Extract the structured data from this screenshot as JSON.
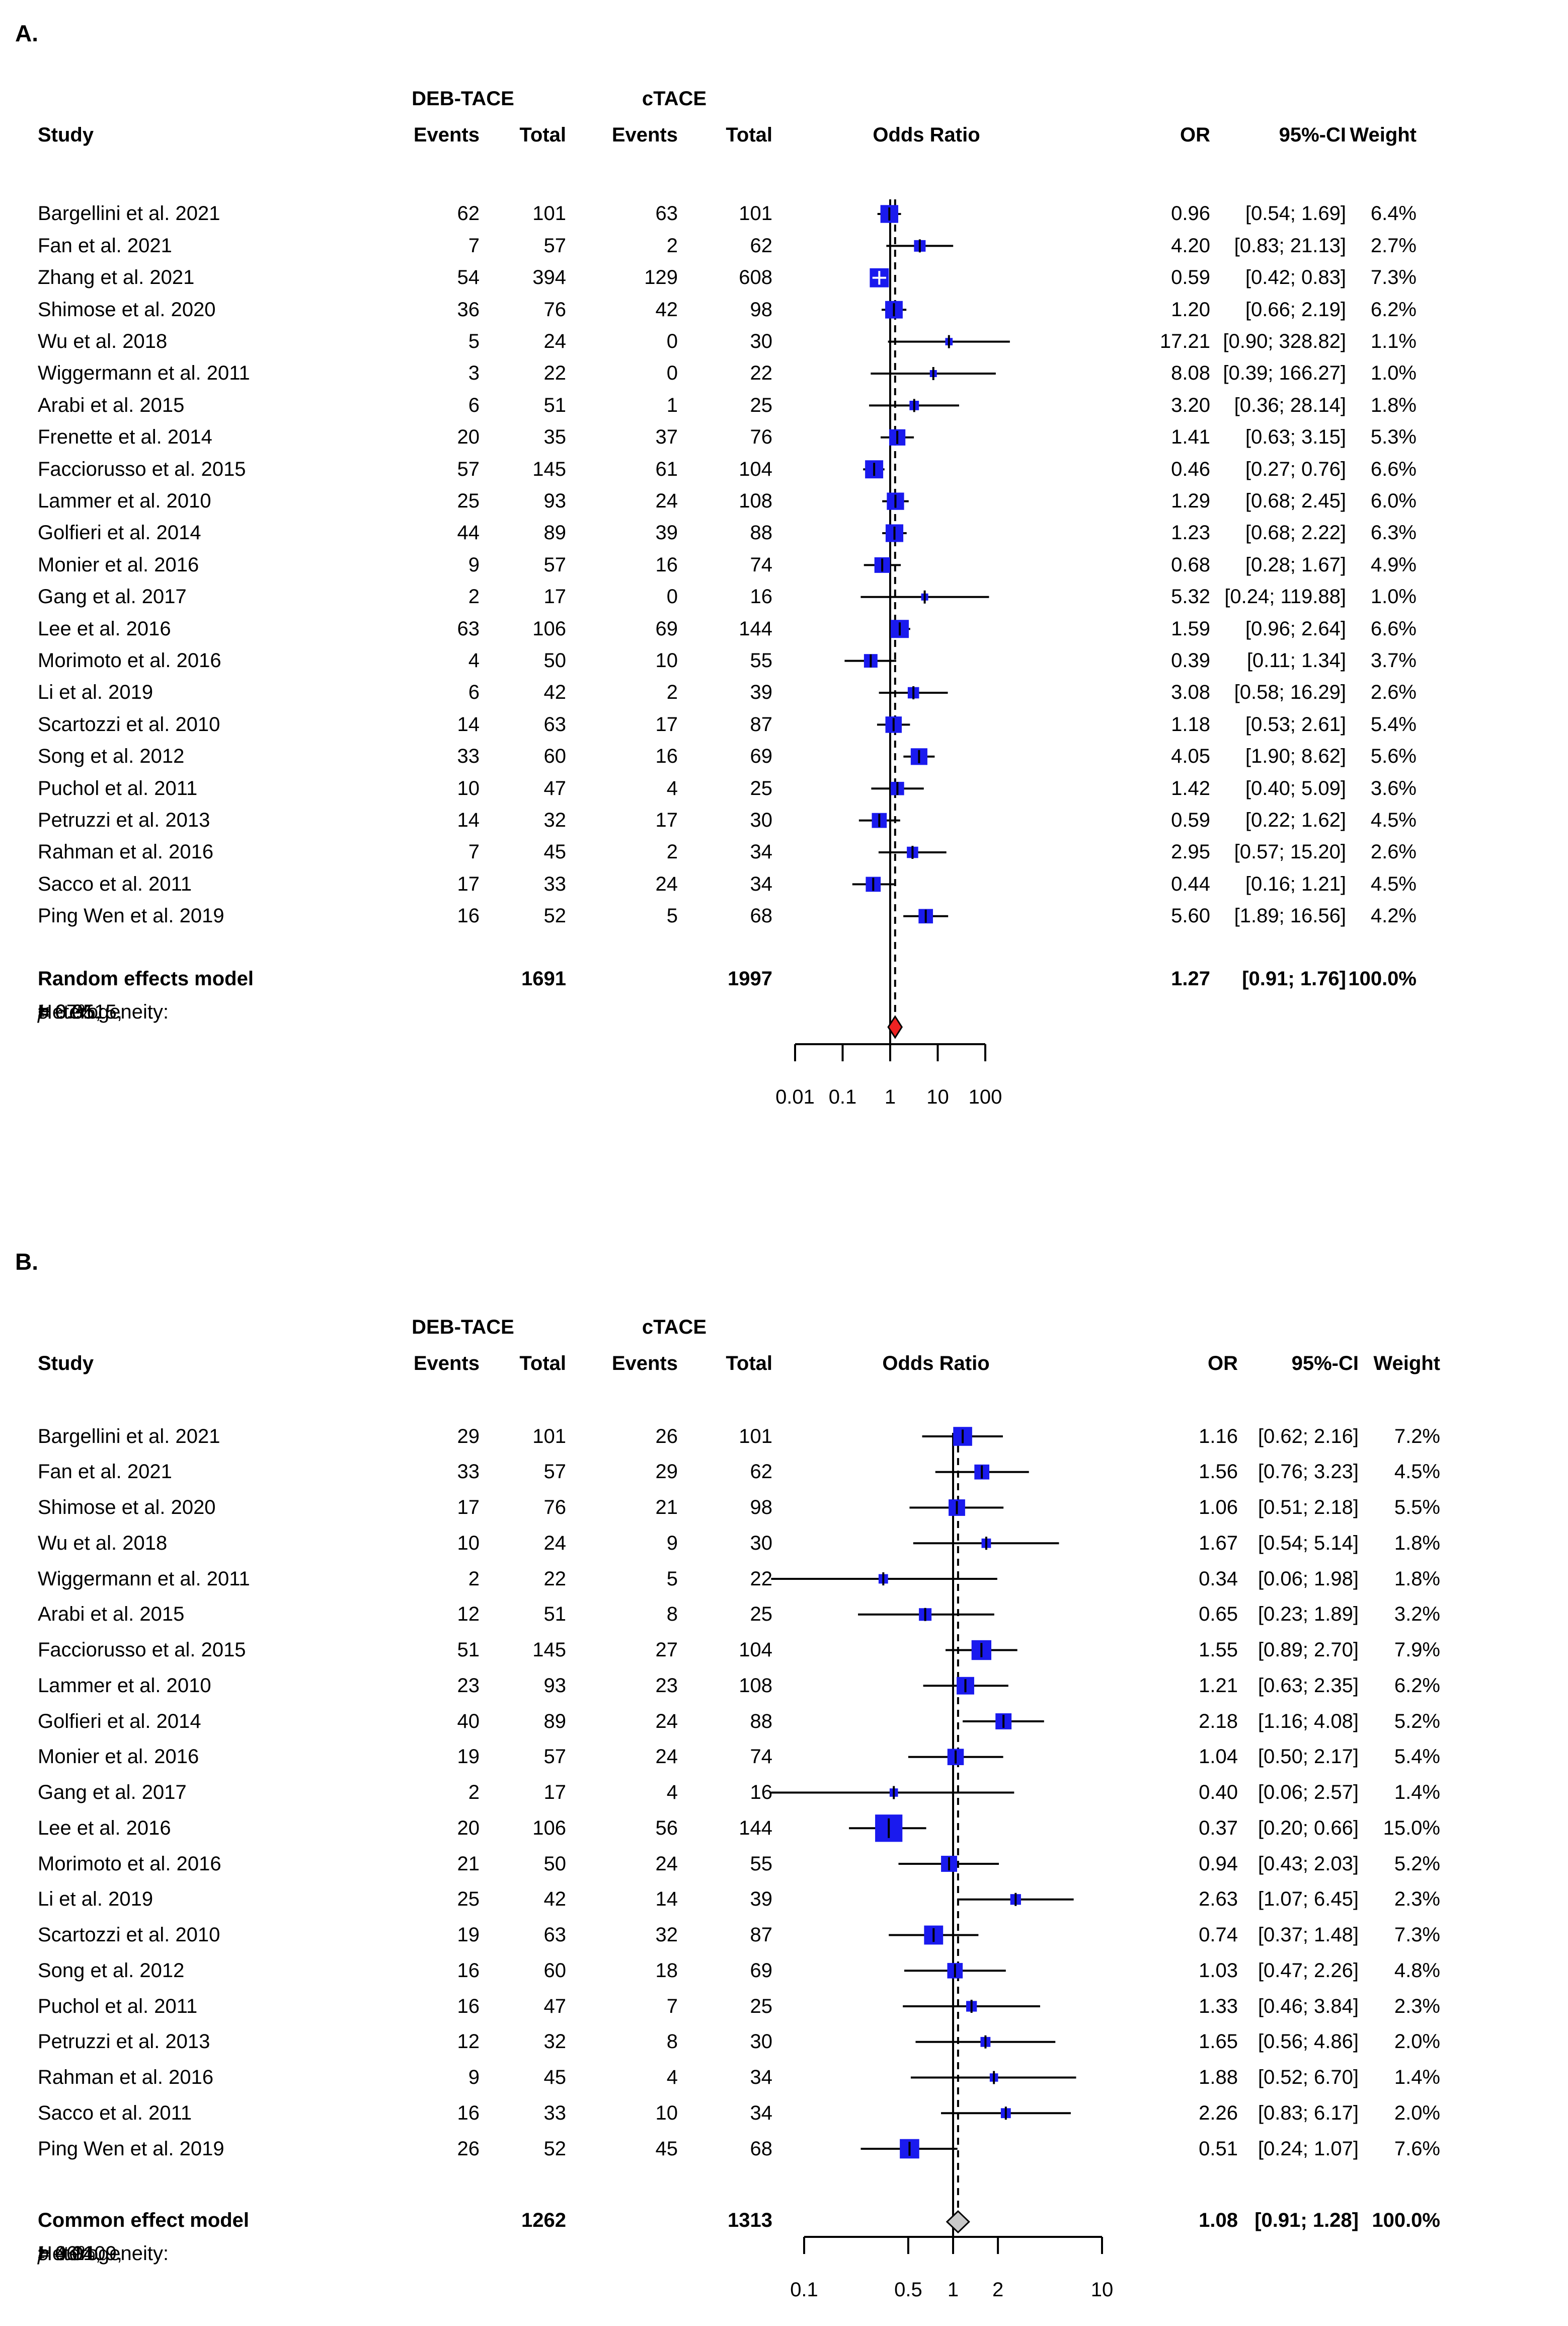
{
  "figure": {
    "background": "#ffffff",
    "text_color": "#000000"
  },
  "chart_data": [
    {
      "type": "forest",
      "panel_label": "A.",
      "scale": "log",
      "xlim": [
        0.01,
        100
      ],
      "legend_position": "none",
      "headers": {
        "study": "Study",
        "group1": "DEB-TACE",
        "group2": "cTACE",
        "events": "Events",
        "total": "Total",
        "plot": "Odds Ratio",
        "or": "OR",
        "ci": "95%-CI",
        "weight": "Weight"
      },
      "colors": {
        "square": "#1a1aee",
        "diamond": "#ee2222",
        "line": "#000000"
      },
      "axis_ticks": [
        {
          "v": 0.01,
          "label": "0.01"
        },
        {
          "v": 0.1,
          "label": "0.1"
        },
        {
          "v": 1,
          "label": "1"
        },
        {
          "v": 10,
          "label": "10"
        },
        {
          "v": 100,
          "label": "100"
        }
      ],
      "studies": [
        {
          "name": "Bargellini et al. 2021",
          "e1": 62,
          "t1": 101,
          "e2": 63,
          "t2": 101,
          "or": 0.96,
          "lo": 0.54,
          "hi": 1.69,
          "or_text": "0.96",
          "ci_text": "[0.54; 1.69]",
          "weight": 6.4,
          "weight_text": "6.4%"
        },
        {
          "name": "Fan et al. 2021",
          "e1": 7,
          "t1": 57,
          "e2": 2,
          "t2": 62,
          "or": 4.2,
          "lo": 0.83,
          "hi": 21.13,
          "or_text": "4.20",
          "ci_text": "[0.83; 21.13]",
          "weight": 2.7,
          "weight_text": "2.7%"
        },
        {
          "name": "Zhang et al. 2021",
          "e1": 54,
          "t1": 394,
          "e2": 129,
          "t2": 608,
          "or": 0.59,
          "lo": 0.42,
          "hi": 0.83,
          "or_text": "0.59",
          "ci_text": "[0.42; 0.83]",
          "weight": 7.3,
          "weight_text": "7.3%"
        },
        {
          "name": "Shimose et al. 2020",
          "e1": 36,
          "t1": 76,
          "e2": 42,
          "t2": 98,
          "or": 1.2,
          "lo": 0.66,
          "hi": 2.19,
          "or_text": "1.20",
          "ci_text": "[0.66; 2.19]",
          "weight": 6.2,
          "weight_text": "6.2%"
        },
        {
          "name": "Wu et al. 2018",
          "e1": 5,
          "t1": 24,
          "e2": 0,
          "t2": 30,
          "or": 17.21,
          "lo": 0.9,
          "hi": 328.82,
          "or_text": "17.21",
          "ci_text": "[0.90; 328.82]",
          "weight": 1.1,
          "weight_text": "1.1%"
        },
        {
          "name": "Wiggermann et al. 2011",
          "e1": 3,
          "t1": 22,
          "e2": 0,
          "t2": 22,
          "or": 8.08,
          "lo": 0.39,
          "hi": 166.27,
          "or_text": "8.08",
          "ci_text": "[0.39; 166.27]",
          "weight": 1.0,
          "weight_text": "1.0%"
        },
        {
          "name": "Arabi et al. 2015",
          "e1": 6,
          "t1": 51,
          "e2": 1,
          "t2": 25,
          "or": 3.2,
          "lo": 0.36,
          "hi": 28.14,
          "or_text": "3.20",
          "ci_text": "[0.36; 28.14]",
          "weight": 1.8,
          "weight_text": "1.8%"
        },
        {
          "name": "Frenette et al. 2014",
          "e1": 20,
          "t1": 35,
          "e2": 37,
          "t2": 76,
          "or": 1.41,
          "lo": 0.63,
          "hi": 3.15,
          "or_text": "1.41",
          "ci_text": "[0.63; 3.15]",
          "weight": 5.3,
          "weight_text": "5.3%"
        },
        {
          "name": "Facciorusso et al. 2015",
          "e1": 57,
          "t1": 145,
          "e2": 61,
          "t2": 104,
          "or": 0.46,
          "lo": 0.27,
          "hi": 0.76,
          "or_text": "0.46",
          "ci_text": "[0.27; 0.76]",
          "weight": 6.6,
          "weight_text": "6.6%"
        },
        {
          "name": "Lammer et al. 2010",
          "e1": 25,
          "t1": 93,
          "e2": 24,
          "t2": 108,
          "or": 1.29,
          "lo": 0.68,
          "hi": 2.45,
          "or_text": "1.29",
          "ci_text": "[0.68; 2.45]",
          "weight": 6.0,
          "weight_text": "6.0%"
        },
        {
          "name": "Golfieri et al. 2014",
          "e1": 44,
          "t1": 89,
          "e2": 39,
          "t2": 88,
          "or": 1.23,
          "lo": 0.68,
          "hi": 2.22,
          "or_text": "1.23",
          "ci_text": "[0.68; 2.22]",
          "weight": 6.3,
          "weight_text": "6.3%"
        },
        {
          "name": "Monier et al. 2016",
          "e1": 9,
          "t1": 57,
          "e2": 16,
          "t2": 74,
          "or": 0.68,
          "lo": 0.28,
          "hi": 1.67,
          "or_text": "0.68",
          "ci_text": "[0.28; 1.67]",
          "weight": 4.9,
          "weight_text": "4.9%"
        },
        {
          "name": "Gang et al. 2017",
          "e1": 2,
          "t1": 17,
          "e2": 0,
          "t2": 16,
          "or": 5.32,
          "lo": 0.24,
          "hi": 119.88,
          "or_text": "5.32",
          "ci_text": "[0.24; 119.88]",
          "weight": 1.0,
          "weight_text": "1.0%"
        },
        {
          "name": "Lee et al. 2016",
          "e1": 63,
          "t1": 106,
          "e2": 69,
          "t2": 144,
          "or": 1.59,
          "lo": 0.96,
          "hi": 2.64,
          "or_text": "1.59",
          "ci_text": "[0.96; 2.64]",
          "weight": 6.6,
          "weight_text": "6.6%"
        },
        {
          "name": "Morimoto et al. 2016",
          "e1": 4,
          "t1": 50,
          "e2": 10,
          "t2": 55,
          "or": 0.39,
          "lo": 0.11,
          "hi": 1.34,
          "or_text": "0.39",
          "ci_text": "[0.11; 1.34]",
          "weight": 3.7,
          "weight_text": "3.7%"
        },
        {
          "name": "Li et al. 2019",
          "e1": 6,
          "t1": 42,
          "e2": 2,
          "t2": 39,
          "or": 3.08,
          "lo": 0.58,
          "hi": 16.29,
          "or_text": "3.08",
          "ci_text": "[0.58; 16.29]",
          "weight": 2.6,
          "weight_text": "2.6%"
        },
        {
          "name": "Scartozzi et al. 2010",
          "e1": 14,
          "t1": 63,
          "e2": 17,
          "t2": 87,
          "or": 1.18,
          "lo": 0.53,
          "hi": 2.61,
          "or_text": "1.18",
          "ci_text": "[0.53; 2.61]",
          "weight": 5.4,
          "weight_text": "5.4%"
        },
        {
          "name": "Song et al. 2012",
          "e1": 33,
          "t1": 60,
          "e2": 16,
          "t2": 69,
          "or": 4.05,
          "lo": 1.9,
          "hi": 8.62,
          "or_text": "4.05",
          "ci_text": "[1.90; 8.62]",
          "weight": 5.6,
          "weight_text": "5.6%"
        },
        {
          "name": "Puchol et al. 2011",
          "e1": 10,
          "t1": 47,
          "e2": 4,
          "t2": 25,
          "or": 1.42,
          "lo": 0.4,
          "hi": 5.09,
          "or_text": "1.42",
          "ci_text": "[0.40; 5.09]",
          "weight": 3.6,
          "weight_text": "3.6%"
        },
        {
          "name": "Petruzzi et al. 2013",
          "e1": 14,
          "t1": 32,
          "e2": 17,
          "t2": 30,
          "or": 0.59,
          "lo": 0.22,
          "hi": 1.62,
          "or_text": "0.59",
          "ci_text": "[0.22; 1.62]",
          "weight": 4.5,
          "weight_text": "4.5%"
        },
        {
          "name": "Rahman et al. 2016",
          "e1": 7,
          "t1": 45,
          "e2": 2,
          "t2": 34,
          "or": 2.95,
          "lo": 0.57,
          "hi": 15.2,
          "or_text": "2.95",
          "ci_text": "[0.57; 15.20]",
          "weight": 2.6,
          "weight_text": "2.6%"
        },
        {
          "name": "Sacco et al. 2011",
          "e1": 17,
          "t1": 33,
          "e2": 24,
          "t2": 34,
          "or": 0.44,
          "lo": 0.16,
          "hi": 1.21,
          "or_text": "0.44",
          "ci_text": "[0.16; 1.21]",
          "weight": 4.5,
          "weight_text": "4.5%"
        },
        {
          "name": "Ping Wen et al. 2019",
          "e1": 16,
          "t1": 52,
          "e2": 5,
          "t2": 68,
          "or": 5.6,
          "lo": 1.89,
          "hi": 16.56,
          "or_text": "5.60",
          "ci_text": "[1.89; 16.56]",
          "weight": 4.2,
          "weight_text": "4.2%"
        }
      ],
      "summary": {
        "label": "Random effects model",
        "t1": 1691,
        "t2": 1997,
        "or": 1.27,
        "lo": 0.91,
        "hi": 1.76,
        "or_text": "1.27",
        "ci_text": "[0.91; 1.76]",
        "weight_text": "100.0%"
      },
      "heterogeneity": {
        "prefix": "Heterogeneity: ",
        "i_sym": "I",
        "i_sup": "2",
        "i_rest": " = 67%, ",
        "tau_sym": "τ",
        "tau_sup": "2",
        "tau_rest": " = 0.3515, ",
        "p_sym": "p",
        "p_rest": " < 0.01"
      }
    },
    {
      "type": "forest",
      "panel_label": "B.",
      "scale": "log",
      "xlim": [
        0.1,
        10
      ],
      "legend_position": "none",
      "headers": {
        "study": "Study",
        "group1": "DEB-TACE",
        "group2": "cTACE",
        "events": "Events",
        "total": "Total",
        "plot": "Odds Ratio",
        "or": "OR",
        "ci": "95%-CI",
        "weight": "Weight"
      },
      "colors": {
        "square": "#1a1aee",
        "diamond": "#c9c9c9",
        "line": "#000000"
      },
      "axis_ticks": [
        {
          "v": 0.1,
          "label": "0.1"
        },
        {
          "v": 0.5,
          "label": "0.5"
        },
        {
          "v": 1,
          "label": "1"
        },
        {
          "v": 2,
          "label": "2"
        },
        {
          "v": 10,
          "label": "10"
        }
      ],
      "studies": [
        {
          "name": "Bargellini et al. 2021",
          "e1": 29,
          "t1": 101,
          "e2": 26,
          "t2": 101,
          "or": 1.16,
          "lo": 0.62,
          "hi": 2.16,
          "or_text": "1.16",
          "ci_text": "[0.62; 2.16]",
          "weight": 7.2,
          "weight_text": "7.2%"
        },
        {
          "name": "Fan et al. 2021",
          "e1": 33,
          "t1": 57,
          "e2": 29,
          "t2": 62,
          "or": 1.56,
          "lo": 0.76,
          "hi": 3.23,
          "or_text": "1.56",
          "ci_text": "[0.76; 3.23]",
          "weight": 4.5,
          "weight_text": "4.5%"
        },
        {
          "name": "Shimose et al. 2020",
          "e1": 17,
          "t1": 76,
          "e2": 21,
          "t2": 98,
          "or": 1.06,
          "lo": 0.51,
          "hi": 2.18,
          "or_text": "1.06",
          "ci_text": "[0.51; 2.18]",
          "weight": 5.5,
          "weight_text": "5.5%"
        },
        {
          "name": "Wu et al. 2018",
          "e1": 10,
          "t1": 24,
          "e2": 9,
          "t2": 30,
          "or": 1.67,
          "lo": 0.54,
          "hi": 5.14,
          "or_text": "1.67",
          "ci_text": "[0.54; 5.14]",
          "weight": 1.8,
          "weight_text": "1.8%"
        },
        {
          "name": "Wiggermann et al. 2011",
          "e1": 2,
          "t1": 22,
          "e2": 5,
          "t2": 22,
          "or": 0.34,
          "lo": 0.06,
          "hi": 1.98,
          "or_text": "0.34",
          "ci_text": "[0.06; 1.98]",
          "weight": 1.8,
          "weight_text": "1.8%"
        },
        {
          "name": "Arabi et al. 2015",
          "e1": 12,
          "t1": 51,
          "e2": 8,
          "t2": 25,
          "or": 0.65,
          "lo": 0.23,
          "hi": 1.89,
          "or_text": "0.65",
          "ci_text": "[0.23; 1.89]",
          "weight": 3.2,
          "weight_text": "3.2%"
        },
        {
          "name": "Facciorusso et al. 2015",
          "e1": 51,
          "t1": 145,
          "e2": 27,
          "t2": 104,
          "or": 1.55,
          "lo": 0.89,
          "hi": 2.7,
          "or_text": "1.55",
          "ci_text": "[0.89; 2.70]",
          "weight": 7.9,
          "weight_text": "7.9%"
        },
        {
          "name": "Lammer et al. 2010",
          "e1": 23,
          "t1": 93,
          "e2": 23,
          "t2": 108,
          "or": 1.21,
          "lo": 0.63,
          "hi": 2.35,
          "or_text": "1.21",
          "ci_text": "[0.63; 2.35]",
          "weight": 6.2,
          "weight_text": "6.2%"
        },
        {
          "name": "Golfieri et al. 2014",
          "e1": 40,
          "t1": 89,
          "e2": 24,
          "t2": 88,
          "or": 2.18,
          "lo": 1.16,
          "hi": 4.08,
          "or_text": "2.18",
          "ci_text": "[1.16; 4.08]",
          "weight": 5.2,
          "weight_text": "5.2%"
        },
        {
          "name": "Monier et al. 2016",
          "e1": 19,
          "t1": 57,
          "e2": 24,
          "t2": 74,
          "or": 1.04,
          "lo": 0.5,
          "hi": 2.17,
          "or_text": "1.04",
          "ci_text": "[0.50; 2.17]",
          "weight": 5.4,
          "weight_text": "5.4%"
        },
        {
          "name": "Gang et al. 2017",
          "e1": 2,
          "t1": 17,
          "e2": 4,
          "t2": 16,
          "or": 0.4,
          "lo": 0.06,
          "hi": 2.57,
          "or_text": "0.40",
          "ci_text": "[0.06; 2.57]",
          "weight": 1.4,
          "weight_text": "1.4%"
        },
        {
          "name": "Lee et al. 2016",
          "e1": 20,
          "t1": 106,
          "e2": 56,
          "t2": 144,
          "or": 0.37,
          "lo": 0.2,
          "hi": 0.66,
          "or_text": "0.37",
          "ci_text": "[0.20; 0.66]",
          "weight": 15.0,
          "weight_text": "15.0%"
        },
        {
          "name": "Morimoto et al. 2016",
          "e1": 21,
          "t1": 50,
          "e2": 24,
          "t2": 55,
          "or": 0.94,
          "lo": 0.43,
          "hi": 2.03,
          "or_text": "0.94",
          "ci_text": "[0.43; 2.03]",
          "weight": 5.2,
          "weight_text": "5.2%"
        },
        {
          "name": "Li et al. 2019",
          "e1": 25,
          "t1": 42,
          "e2": 14,
          "t2": 39,
          "or": 2.63,
          "lo": 1.07,
          "hi": 6.45,
          "or_text": "2.63",
          "ci_text": "[1.07; 6.45]",
          "weight": 2.3,
          "weight_text": "2.3%"
        },
        {
          "name": "Scartozzi et al. 2010",
          "e1": 19,
          "t1": 63,
          "e2": 32,
          "t2": 87,
          "or": 0.74,
          "lo": 0.37,
          "hi": 1.48,
          "or_text": "0.74",
          "ci_text": "[0.37; 1.48]",
          "weight": 7.3,
          "weight_text": "7.3%"
        },
        {
          "name": "Song et al. 2012",
          "e1": 16,
          "t1": 60,
          "e2": 18,
          "t2": 69,
          "or": 1.03,
          "lo": 0.47,
          "hi": 2.26,
          "or_text": "1.03",
          "ci_text": "[0.47; 2.26]",
          "weight": 4.8,
          "weight_text": "4.8%"
        },
        {
          "name": "Puchol et al. 2011",
          "e1": 16,
          "t1": 47,
          "e2": 7,
          "t2": 25,
          "or": 1.33,
          "lo": 0.46,
          "hi": 3.84,
          "or_text": "1.33",
          "ci_text": "[0.46; 3.84]",
          "weight": 2.3,
          "weight_text": "2.3%"
        },
        {
          "name": "Petruzzi et al. 2013",
          "e1": 12,
          "t1": 32,
          "e2": 8,
          "t2": 30,
          "or": 1.65,
          "lo": 0.56,
          "hi": 4.86,
          "or_text": "1.65",
          "ci_text": "[0.56; 4.86]",
          "weight": 2.0,
          "weight_text": "2.0%"
        },
        {
          "name": "Rahman et al. 2016",
          "e1": 9,
          "t1": 45,
          "e2": 4,
          "t2": 34,
          "or": 1.88,
          "lo": 0.52,
          "hi": 6.7,
          "or_text": "1.88",
          "ci_text": "[0.52; 6.70]",
          "weight": 1.4,
          "weight_text": "1.4%"
        },
        {
          "name": "Sacco et al. 2011",
          "e1": 16,
          "t1": 33,
          "e2": 10,
          "t2": 34,
          "or": 2.26,
          "lo": 0.83,
          "hi": 6.17,
          "or_text": "2.26",
          "ci_text": "[0.83; 6.17]",
          "weight": 2.0,
          "weight_text": "2.0%"
        },
        {
          "name": "Ping Wen et al. 2019",
          "e1": 26,
          "t1": 52,
          "e2": 45,
          "t2": 68,
          "or": 0.51,
          "lo": 0.24,
          "hi": 1.07,
          "or_text": "0.51",
          "ci_text": "[0.24; 1.07]",
          "weight": 7.6,
          "weight_text": "7.6%"
        }
      ],
      "summary": {
        "label": "Common effect model",
        "t1": 1262,
        "t2": 1313,
        "or": 1.08,
        "lo": 0.91,
        "hi": 1.28,
        "or_text": "1.08",
        "ci_text": "[0.91; 1.28]",
        "weight_text": "100.0%"
      },
      "heterogeneity": {
        "prefix": "Heterogeneity: ",
        "i_sym": "I",
        "i_sup": "2",
        "i_rest": " = 46%, ",
        "tau_sym": "τ",
        "tau_sup": "2",
        "tau_rest": " = 0.1409, ",
        "p_sym": "p",
        "p_rest": " = 0.01"
      }
    }
  ]
}
